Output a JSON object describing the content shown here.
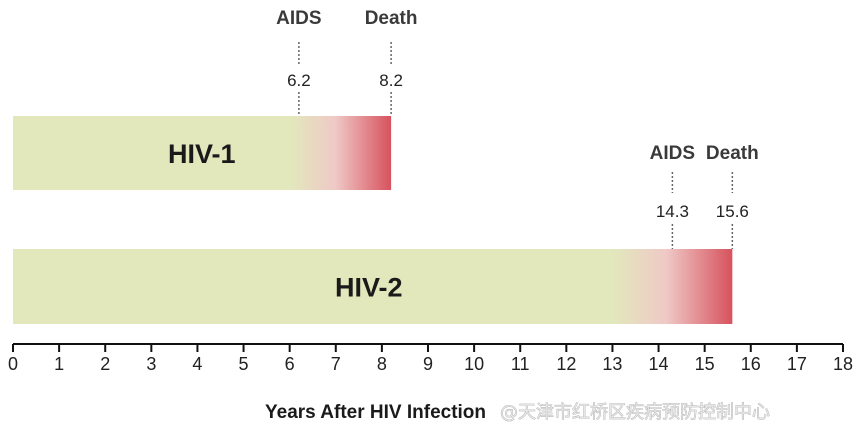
{
  "chart_data": {
    "type": "bar",
    "orientation": "horizontal",
    "xlabel": "Years After HIV Infection",
    "xlim": [
      0,
      18
    ],
    "x_ticks": [
      0,
      1,
      2,
      3,
      4,
      5,
      6,
      7,
      8,
      9,
      10,
      11,
      12,
      13,
      14,
      15,
      16,
      17,
      18
    ],
    "grid": false,
    "bars": [
      {
        "id": "hiv1",
        "label": "HIV-1",
        "start": 0,
        "end": 8.2,
        "gradient_start": 6.0
      },
      {
        "id": "hiv2",
        "label": "HIV-2",
        "start": 0,
        "end": 15.6,
        "gradient_start": 13.0
      }
    ],
    "markers": [
      {
        "bar": "hiv1",
        "label": "AIDS",
        "value": 6.2,
        "value_text": "6.2"
      },
      {
        "bar": "hiv1",
        "label": "Death",
        "value": 8.2,
        "value_text": "8.2"
      },
      {
        "bar": "hiv2",
        "label": "AIDS",
        "value": 14.3,
        "value_text": "14.3"
      },
      {
        "bar": "hiv2",
        "label": "Death",
        "value": 15.6,
        "value_text": "15.6"
      }
    ],
    "colors": {
      "bar_fill": "#e2e8bc",
      "bar_end": "#d7525e",
      "axis": "#111111"
    }
  },
  "watermark": "@天津市红桥区疾病预防控制中心"
}
